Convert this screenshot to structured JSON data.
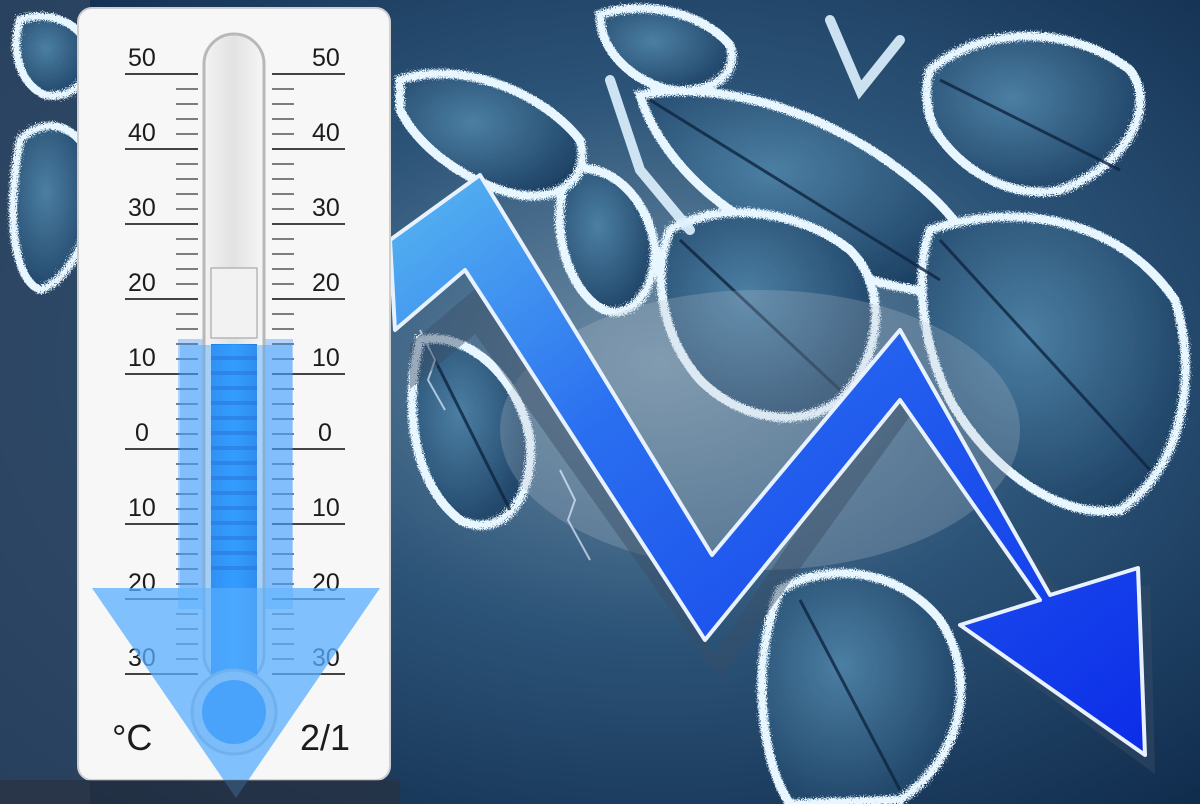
{
  "thermometer": {
    "left_scale": [
      "50",
      "40",
      "30",
      "20",
      "10",
      "0",
      "10",
      "20",
      "30"
    ],
    "right_scale": [
      "50",
      "40",
      "30",
      "20",
      "10",
      "0",
      "10",
      "20",
      "30"
    ],
    "unit_label": "°C",
    "date_label": "2/1",
    "mercury_level_celsius": 14
  },
  "colors": {
    "mercury": "#1f8fff",
    "trend_arrow": "#1a5cf0",
    "frost_leaf": "#3f6f93",
    "sky": "#143a60"
  },
  "icons": [
    "thermometer-icon",
    "down-arrow-icon",
    "trend-down-arrow-icon"
  ]
}
